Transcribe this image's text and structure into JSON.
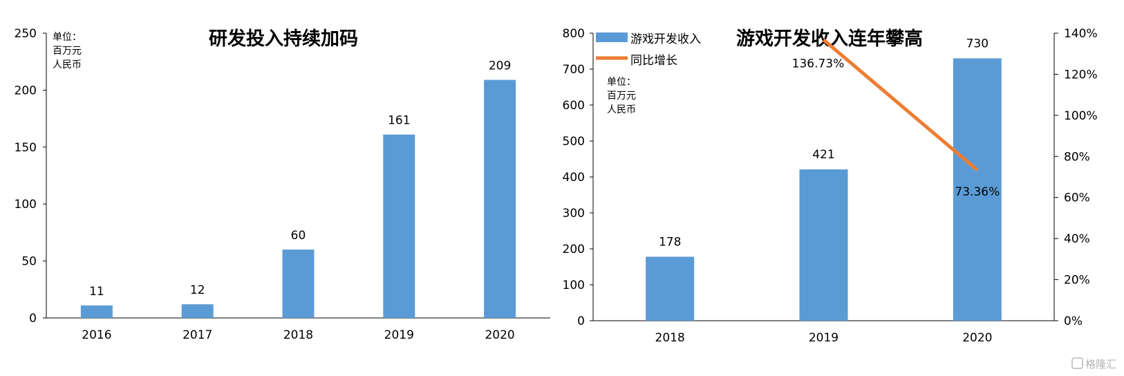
{
  "colors": {
    "bar": "#5b9bd5",
    "line": "#ed7d31",
    "axis": "#000000"
  },
  "chart_data": [
    {
      "type": "bar",
      "title": "研发投入持续加码",
      "unit_label": [
        "单位：",
        "百万元",
        "人民币"
      ],
      "categories": [
        "2016",
        "2017",
        "2018",
        "2019",
        "2020"
      ],
      "values": [
        11,
        12,
        60,
        161,
        209
      ],
      "data_labels": [
        "11",
        "12",
        "60",
        "161",
        "209"
      ],
      "ylim": [
        0,
        250
      ],
      "yticks": [
        "0",
        "50",
        "100",
        "150",
        "200",
        "250"
      ],
      "grid": false,
      "legend": "none"
    },
    {
      "type": "bar+line",
      "title": "游戏开发收入连年攀高",
      "unit_label": [
        "单位：",
        "百万元",
        "人民币"
      ],
      "categories": [
        "2018",
        "2019",
        "2020"
      ],
      "series": [
        {
          "name": "游戏开发收入",
          "type": "bar",
          "axis": "left",
          "values": [
            178,
            421,
            730
          ],
          "data_labels": [
            "178",
            "421",
            "730"
          ]
        },
        {
          "name": "同比增长",
          "type": "line",
          "axis": "right",
          "values": [
            null,
            136.73,
            73.36
          ],
          "data_labels": [
            "",
            "136.73%",
            "73.36%"
          ]
        }
      ],
      "ylim": [
        0,
        800
      ],
      "yticks": [
        "0",
        "100",
        "200",
        "300",
        "400",
        "500",
        "600",
        "700",
        "800"
      ],
      "y2lim": [
        0,
        140
      ],
      "y2ticks": [
        "0%",
        "20%",
        "40%",
        "60%",
        "80%",
        "100%",
        "120%",
        "140%"
      ],
      "grid": false,
      "legend": "top-left"
    }
  ],
  "watermark": "格隆汇"
}
